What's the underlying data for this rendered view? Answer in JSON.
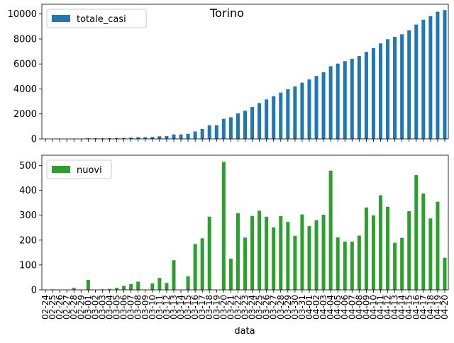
{
  "chart_data": [
    {
      "type": "bar",
      "title": "Torino",
      "xlabel": "",
      "ylabel": "",
      "ylim": [
        0,
        10780
      ],
      "yticks": [
        0,
        2000,
        4000,
        6000,
        8000,
        10000
      ],
      "legend": "top-left",
      "show_xtick_labels": false,
      "color": "#1f77b4",
      "categories": [
        "02-24",
        "02-25",
        "02-26",
        "02-27",
        "02-28",
        "02-29",
        "03-01",
        "03-02",
        "03-03",
        "03-04",
        "03-05",
        "03-06",
        "03-07",
        "03-08",
        "03-09",
        "03-10",
        "03-11",
        "03-12",
        "03-13",
        "03-14",
        "03-15",
        "03-16",
        "03-17",
        "03-18",
        "03-19",
        "03-20",
        "03-21",
        "03-22",
        "03-23",
        "03-24",
        "03-25",
        "03-26",
        "03-27",
        "03-28",
        "03-29",
        "03-30",
        "03-31",
        "04-01",
        "04-02",
        "04-03",
        "04-04",
        "04-05",
        "04-06",
        "04-07",
        "04-08",
        "04-09",
        "04-10",
        "04-11",
        "04-12",
        "04-13",
        "04-14",
        "04-15",
        "04-16",
        "04-17",
        "04-18",
        "04-19",
        "04-20"
      ],
      "series": [
        {
          "name": "totale_casi",
          "values": [
            0,
            2,
            2,
            2,
            10,
            10,
            50,
            50,
            52,
            56,
            64,
            80,
            103,
            136,
            136,
            162,
            210,
            238,
            357,
            357,
            411,
            595,
            802,
            1096,
            1096,
            1610,
            1735,
            2043,
            2253,
            2550,
            2868,
            3162,
            3413,
            3709,
            3982,
            4199,
            4502,
            4758,
            5038,
            5340,
            5819,
            6030,
            6224,
            6418,
            6636,
            6967,
            7266,
            7646,
            7980,
            8169,
            8378,
            8694,
            9155,
            9542,
            9829,
            10183,
            10312
          ]
        }
      ]
    },
    {
      "type": "bar",
      "title": "",
      "xlabel": "data",
      "ylabel": "",
      "ylim": [
        0,
        541
      ],
      "yticks": [
        0,
        100,
        200,
        300,
        400,
        500
      ],
      "legend": "top-left",
      "show_xtick_labels": true,
      "color": "#2ca02c",
      "categories": [
        "02-24",
        "02-25",
        "02-26",
        "02-27",
        "02-28",
        "02-29",
        "03-01",
        "03-02",
        "03-03",
        "03-04",
        "03-05",
        "03-06",
        "03-07",
        "03-08",
        "03-09",
        "03-10",
        "03-11",
        "03-12",
        "03-13",
        "03-14",
        "03-15",
        "03-16",
        "03-17",
        "03-18",
        "03-19",
        "03-20",
        "03-21",
        "03-22",
        "03-23",
        "03-24",
        "03-25",
        "03-26",
        "03-27",
        "03-28",
        "03-29",
        "03-30",
        "03-31",
        "04-01",
        "04-02",
        "04-03",
        "04-04",
        "04-05",
        "04-06",
        "04-07",
        "04-08",
        "04-09",
        "04-10",
        "04-11",
        "04-12",
        "04-13",
        "04-14",
        "04-15",
        "04-16",
        "04-17",
        "04-18",
        "04-19",
        "04-20"
      ],
      "series": [
        {
          "name": "nuovi",
          "values": [
            0,
            2,
            0,
            0,
            8,
            0,
            40,
            0,
            2,
            4,
            8,
            16,
            23,
            33,
            0,
            26,
            48,
            28,
            119,
            0,
            54,
            184,
            207,
            294,
            0,
            514,
            125,
            308,
            210,
            297,
            318,
            294,
            251,
            296,
            273,
            217,
            303,
            256,
            280,
            302,
            479,
            211,
            194,
            194,
            218,
            331,
            299,
            380,
            334,
            189,
            209,
            316,
            461,
            387,
            287,
            354,
            129
          ]
        }
      ]
    }
  ]
}
